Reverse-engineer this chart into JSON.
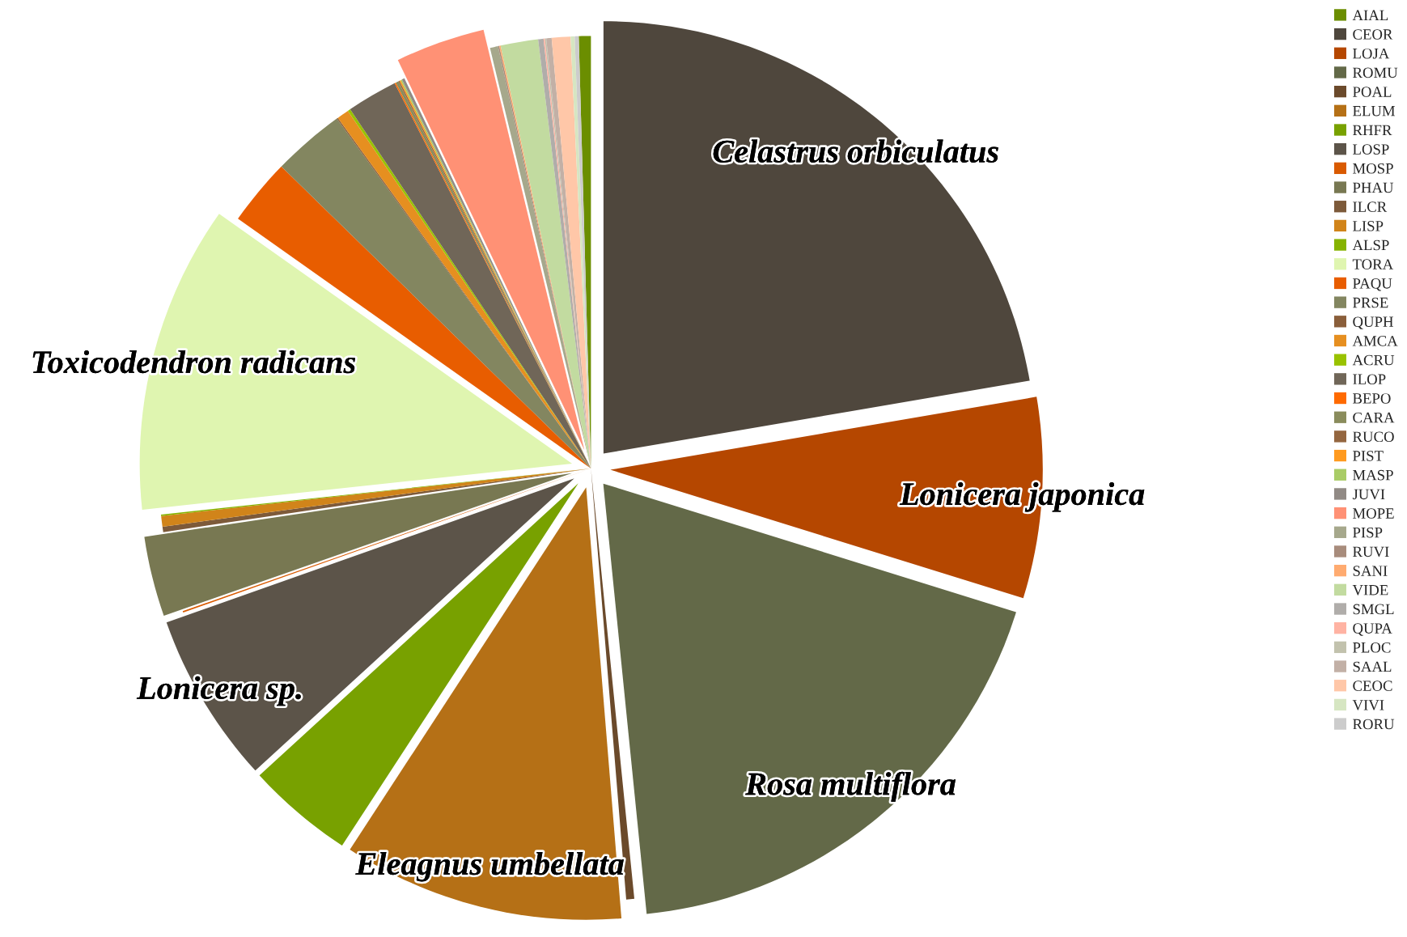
{
  "chart_data": {
    "type": "pie",
    "categories": [
      "AIAL",
      "CEOR",
      "LOJA",
      "ROMU",
      "POAL",
      "ELUM",
      "RHFR",
      "LOSP",
      "MOSP",
      "PHAU",
      "ILCR",
      "LISP",
      "ALSP",
      "TORA",
      "PAQU",
      "PRSE",
      "QUPH",
      "AMCA",
      "ACRU",
      "ILOP",
      "BEPO",
      "CARA",
      "RUCO",
      "PIST",
      "MASP",
      "JUVI",
      "MOPE",
      "PISP",
      "RUVI",
      "SANI",
      "VIDE",
      "SMGL",
      "QUPA",
      "PLOC",
      "SAAL",
      "CEOC",
      "VIVI",
      "RORU"
    ],
    "values": [
      0.45,
      22.3,
      7.5,
      18.6,
      0.3,
      10.5,
      4,
      6.4,
      0.05,
      3,
      0.2,
      0.4,
      0.05,
      11.5,
      2.5,
      2.7,
      0.05,
      0.45,
      0.1,
      1.9,
      0.05,
      0.1,
      0.05,
      0.05,
      0.05,
      0.1,
      3.35,
      0.3,
      0.05,
      0.05,
      1.4,
      0.2,
      0.05,
      0.05,
      0.2,
      0.7,
      0.15,
      0.15
    ],
    "colors": [
      "#6b8e00",
      "#4f473d",
      "#b54700",
      "#636948",
      "#6b4a2b",
      "#b57016",
      "#78a100",
      "#5c5449",
      "#d95a00",
      "#787852",
      "#7d5a3a",
      "#d1841a",
      "#86b300",
      "#dff5b0",
      "#e85d00",
      "#838660",
      "#8a5e3a",
      "#e68f20",
      "#99c200",
      "#706658",
      "#ff6a00",
      "#8a8c5c",
      "#94663f",
      "#ff9a1f",
      "#a9cc66",
      "#918a85",
      "#ff9175",
      "#a6a88c",
      "#a88c7c",
      "#ffab70",
      "#c2dba0",
      "#b0adaa",
      "#ffb3a3",
      "#c2c2ad",
      "#c2b0a6",
      "#ffc7a8",
      "#d6e6c2",
      "#cccccc"
    ],
    "legend": "top right",
    "annotations": [
      {
        "text": "Celastrus orbiculatus",
        "x": "CEOR"
      },
      {
        "text": "Lonicera japonica",
        "x": "LOJA"
      },
      {
        "text": "Rosa multiflora",
        "x": "ROMU"
      },
      {
        "text": "Eleagnus umbellata",
        "x": "ELUM"
      },
      {
        "text": "Lonicera sp.",
        "x": "LOSP"
      },
      {
        "text": "Toxicodendron radicans",
        "x": "TORA"
      }
    ]
  }
}
